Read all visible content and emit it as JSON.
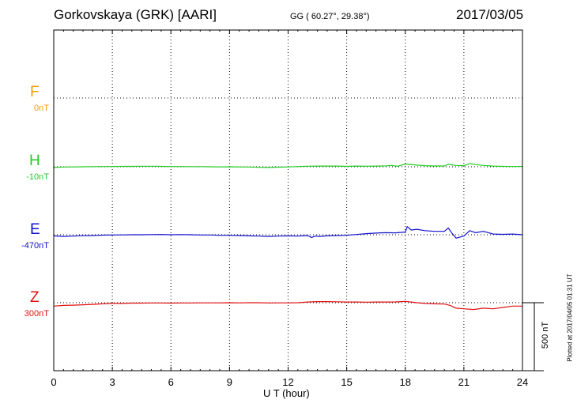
{
  "header": {
    "station": "Gorkovskaya (GRK)  [AARI]",
    "coords": "GG ( 60.27°,  29.38°)",
    "date": "2017/03/05"
  },
  "side_note": "Plotted at 2017/04/05 01:31 UT",
  "components": [
    {
      "letter": "F",
      "baseline": "0nT",
      "color": "#f0a000"
    },
    {
      "letter": "H",
      "baseline": "-10nT",
      "color": "#22cc22"
    },
    {
      "letter": "E",
      "baseline": "-470nT",
      "color": "#1010cc"
    },
    {
      "letter": "Z",
      "baseline": "300nT",
      "color": "#e01010"
    }
  ],
  "scale_label": "500 nT",
  "chart_data": {
    "type": "line",
    "title": "Gorkovskaya (GRK)  [AARI]",
    "xlabel": "U T (hour)",
    "ylabel": "",
    "xlim": [
      0,
      24
    ],
    "xticks": [
      0,
      3,
      6,
      9,
      12,
      15,
      18,
      21,
      24
    ],
    "grid": true,
    "scale_bar_nT": 500,
    "series": [
      {
        "name": "H",
        "baseline_nT": -10,
        "color": "#22cc22",
        "x": [
          0,
          0.5,
          1,
          1.5,
          2,
          2.5,
          3,
          3.5,
          4,
          4.5,
          5,
          5.5,
          6,
          6.5,
          7,
          7.5,
          8,
          8.5,
          9,
          9.5,
          10,
          10.5,
          11,
          11.5,
          12,
          12.5,
          13,
          13.5,
          14,
          14.5,
          15,
          15.5,
          16,
          16.5,
          17,
          17.3,
          17.6,
          18,
          18.3,
          18.6,
          19,
          19.5,
          20,
          20.2,
          20.4,
          20.6,
          21,
          21.3,
          21.6,
          22,
          22.5,
          23,
          23.5,
          24
        ],
        "y": [
          -5,
          -2,
          -1,
          0,
          1,
          2,
          2,
          3,
          3,
          4,
          4,
          3,
          2,
          2,
          1,
          1,
          0,
          -1,
          0,
          -1,
          -2,
          -4,
          -5,
          -3,
          -1,
          2,
          4,
          5,
          5,
          5,
          3,
          5,
          4,
          5,
          7,
          10,
          4,
          20,
          17,
          12,
          8,
          6,
          6,
          18,
          14,
          10,
          8,
          24,
          16,
          10,
          5,
          3,
          2,
          3
        ]
      },
      {
        "name": "E",
        "baseline_nT": -470,
        "color": "#1010cc",
        "x": [
          0,
          0.5,
          1,
          1.5,
          2,
          2.5,
          3,
          3.5,
          4,
          4.5,
          5,
          5.5,
          6,
          6.5,
          7,
          7.5,
          8,
          8.5,
          9,
          9.5,
          10,
          10.5,
          11,
          11.5,
          12,
          12.5,
          13,
          13.2,
          13.4,
          13.6,
          14,
          14.5,
          15,
          15.5,
          16,
          16.5,
          17,
          17.5,
          18,
          18.1,
          18.3,
          18.6,
          19,
          19.5,
          20,
          20.2,
          20.4,
          20.6,
          21,
          21.3,
          21.6,
          22,
          22.5,
          23,
          23.5,
          24
        ],
        "y": [
          -8,
          -12,
          -10,
          -7,
          -6,
          -3,
          -2,
          -1,
          0,
          0,
          1,
          2,
          0,
          1,
          0,
          -2,
          -2,
          -4,
          -4,
          -6,
          -8,
          -10,
          -12,
          -10,
          -8,
          -10,
          -6,
          -20,
          -10,
          -12,
          -8,
          -6,
          -4,
          2,
          8,
          12,
          15,
          14,
          20,
          60,
          35,
          40,
          30,
          25,
          25,
          50,
          10,
          -25,
          -10,
          30,
          15,
          25,
          5,
          3,
          5,
          0
        ]
      },
      {
        "name": "Z",
        "baseline_nT": 300,
        "color": "#e01010",
        "x": [
          0,
          0.5,
          1,
          1.5,
          2,
          2.5,
          3,
          3.5,
          4,
          4.5,
          5,
          5.5,
          6,
          6.5,
          7,
          7.5,
          8,
          8.5,
          9,
          9.5,
          10,
          10.5,
          11,
          11.5,
          12,
          12.5,
          13,
          13.5,
          14,
          14.5,
          15,
          15.5,
          16,
          16.5,
          17,
          17.5,
          18,
          18.3,
          18.6,
          19,
          19.5,
          20,
          20.3,
          20.6,
          21,
          21.5,
          22,
          22.5,
          23,
          23.5,
          24
        ],
        "y": [
          -25,
          -20,
          -18,
          -15,
          -12,
          -8,
          -5,
          -5,
          -3,
          -3,
          -2,
          -2,
          -3,
          -2,
          -2,
          -1,
          -1,
          -1,
          0,
          -1,
          0,
          0,
          -2,
          -1,
          -1,
          0,
          5,
          8,
          8,
          7,
          5,
          5,
          4,
          5,
          5,
          6,
          10,
          5,
          0,
          -5,
          -8,
          -10,
          -20,
          -40,
          -45,
          -50,
          -40,
          -45,
          -35,
          -25,
          -25
        ]
      }
    ]
  }
}
